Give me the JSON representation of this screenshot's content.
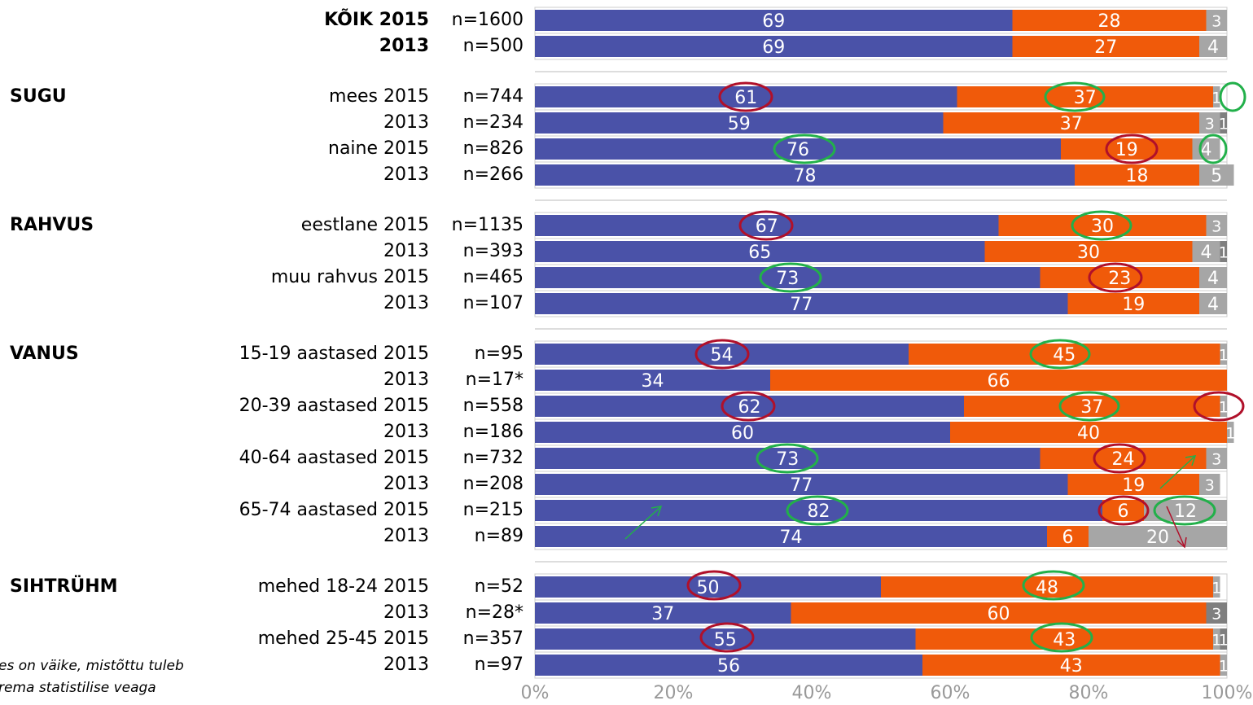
{
  "chart_data": {
    "type": "stacked-bar",
    "rows": [
      {
        "label": "KÕIK 2015",
        "bold": true,
        "n": "n=1600"
      },
      {
        "label": "2013",
        "bold": true,
        "n": "n=500"
      },
      {
        "group": "SUGU",
        "label": "mees 2015",
        "n": "n=744"
      },
      {
        "label": "2013",
        "n": "n=234"
      },
      {
        "label": "naine 2015",
        "n": "n=826"
      },
      {
        "label": "2013",
        "n": "n=266"
      },
      {
        "group": "RAHVUS",
        "label": "eestlane 2015",
        "n": "n=1135"
      },
      {
        "label": "2013",
        "n": "n=393"
      },
      {
        "label": "muu rahvus 2015",
        "n": "n=465"
      },
      {
        "label": "2013",
        "n": "n=107"
      },
      {
        "group": "VANUS",
        "label": "15-19 aastased 2015",
        "n": "n=95"
      },
      {
        "label": "2013",
        "n": "n=17*"
      },
      {
        "label": "20-39 aastased 2015",
        "n": "n=558"
      },
      {
        "label": "2013",
        "n": "n=186"
      },
      {
        "label": "40-64 aastased 2015",
        "n": "n=732"
      },
      {
        "label": "2013",
        "n": "n=208"
      },
      {
        "label": "65-74 aastased 2015",
        "n": "n=215"
      },
      {
        "label": "2013",
        "n": "n=89"
      },
      {
        "group": "SIHTRÜHM",
        "label": "mehed 18-24 2015",
        "n": "n=52"
      },
      {
        "label": "2013",
        "n": "n=28*"
      },
      {
        "label": "mehed 25-45 2015",
        "n": "n=357"
      },
      {
        "label": "2013",
        "n": "n=97"
      }
    ],
    "series": [
      {
        "color": "#4a52a8",
        "values": [
          69,
          69,
          61,
          59,
          76,
          78,
          67,
          65,
          73,
          77,
          54,
          34,
          62,
          60,
          73,
          77,
          82,
          74,
          50,
          37,
          55,
          56
        ]
      },
      {
        "color": "#f05a0a",
        "values": [
          28,
          27,
          37,
          37,
          19,
          18,
          30,
          30,
          23,
          19,
          45,
          66,
          37,
          40,
          24,
          19,
          6,
          6,
          48,
          60,
          43,
          43
        ]
      },
      {
        "color": "#a6a6a6",
        "values": [
          3,
          4,
          1,
          3,
          4,
          5,
          3,
          4,
          4,
          4,
          1,
          null,
          1,
          1,
          3,
          3,
          12,
          20,
          1,
          null,
          1,
          1
        ]
      },
      {
        "color": "#7f7f7f",
        "values": [
          null,
          null,
          null,
          1,
          null,
          null,
          null,
          1,
          null,
          null,
          null,
          null,
          null,
          null,
          null,
          null,
          null,
          null,
          null,
          3,
          1,
          null
        ]
      }
    ],
    "xlim": [
      0,
      100
    ],
    "xticks": [
      {
        "value": 0,
        "label": "0%"
      },
      {
        "value": 20,
        "label": "20%"
      },
      {
        "value": 40,
        "label": "40%"
      },
      {
        "value": 60,
        "label": "60%"
      },
      {
        "value": 80,
        "label": "80%"
      },
      {
        "value": 100,
        "label": "100%"
      }
    ],
    "footnote": [
      "es on väike, mistõttu tuleb",
      "rema statistilise veaga"
    ]
  }
}
